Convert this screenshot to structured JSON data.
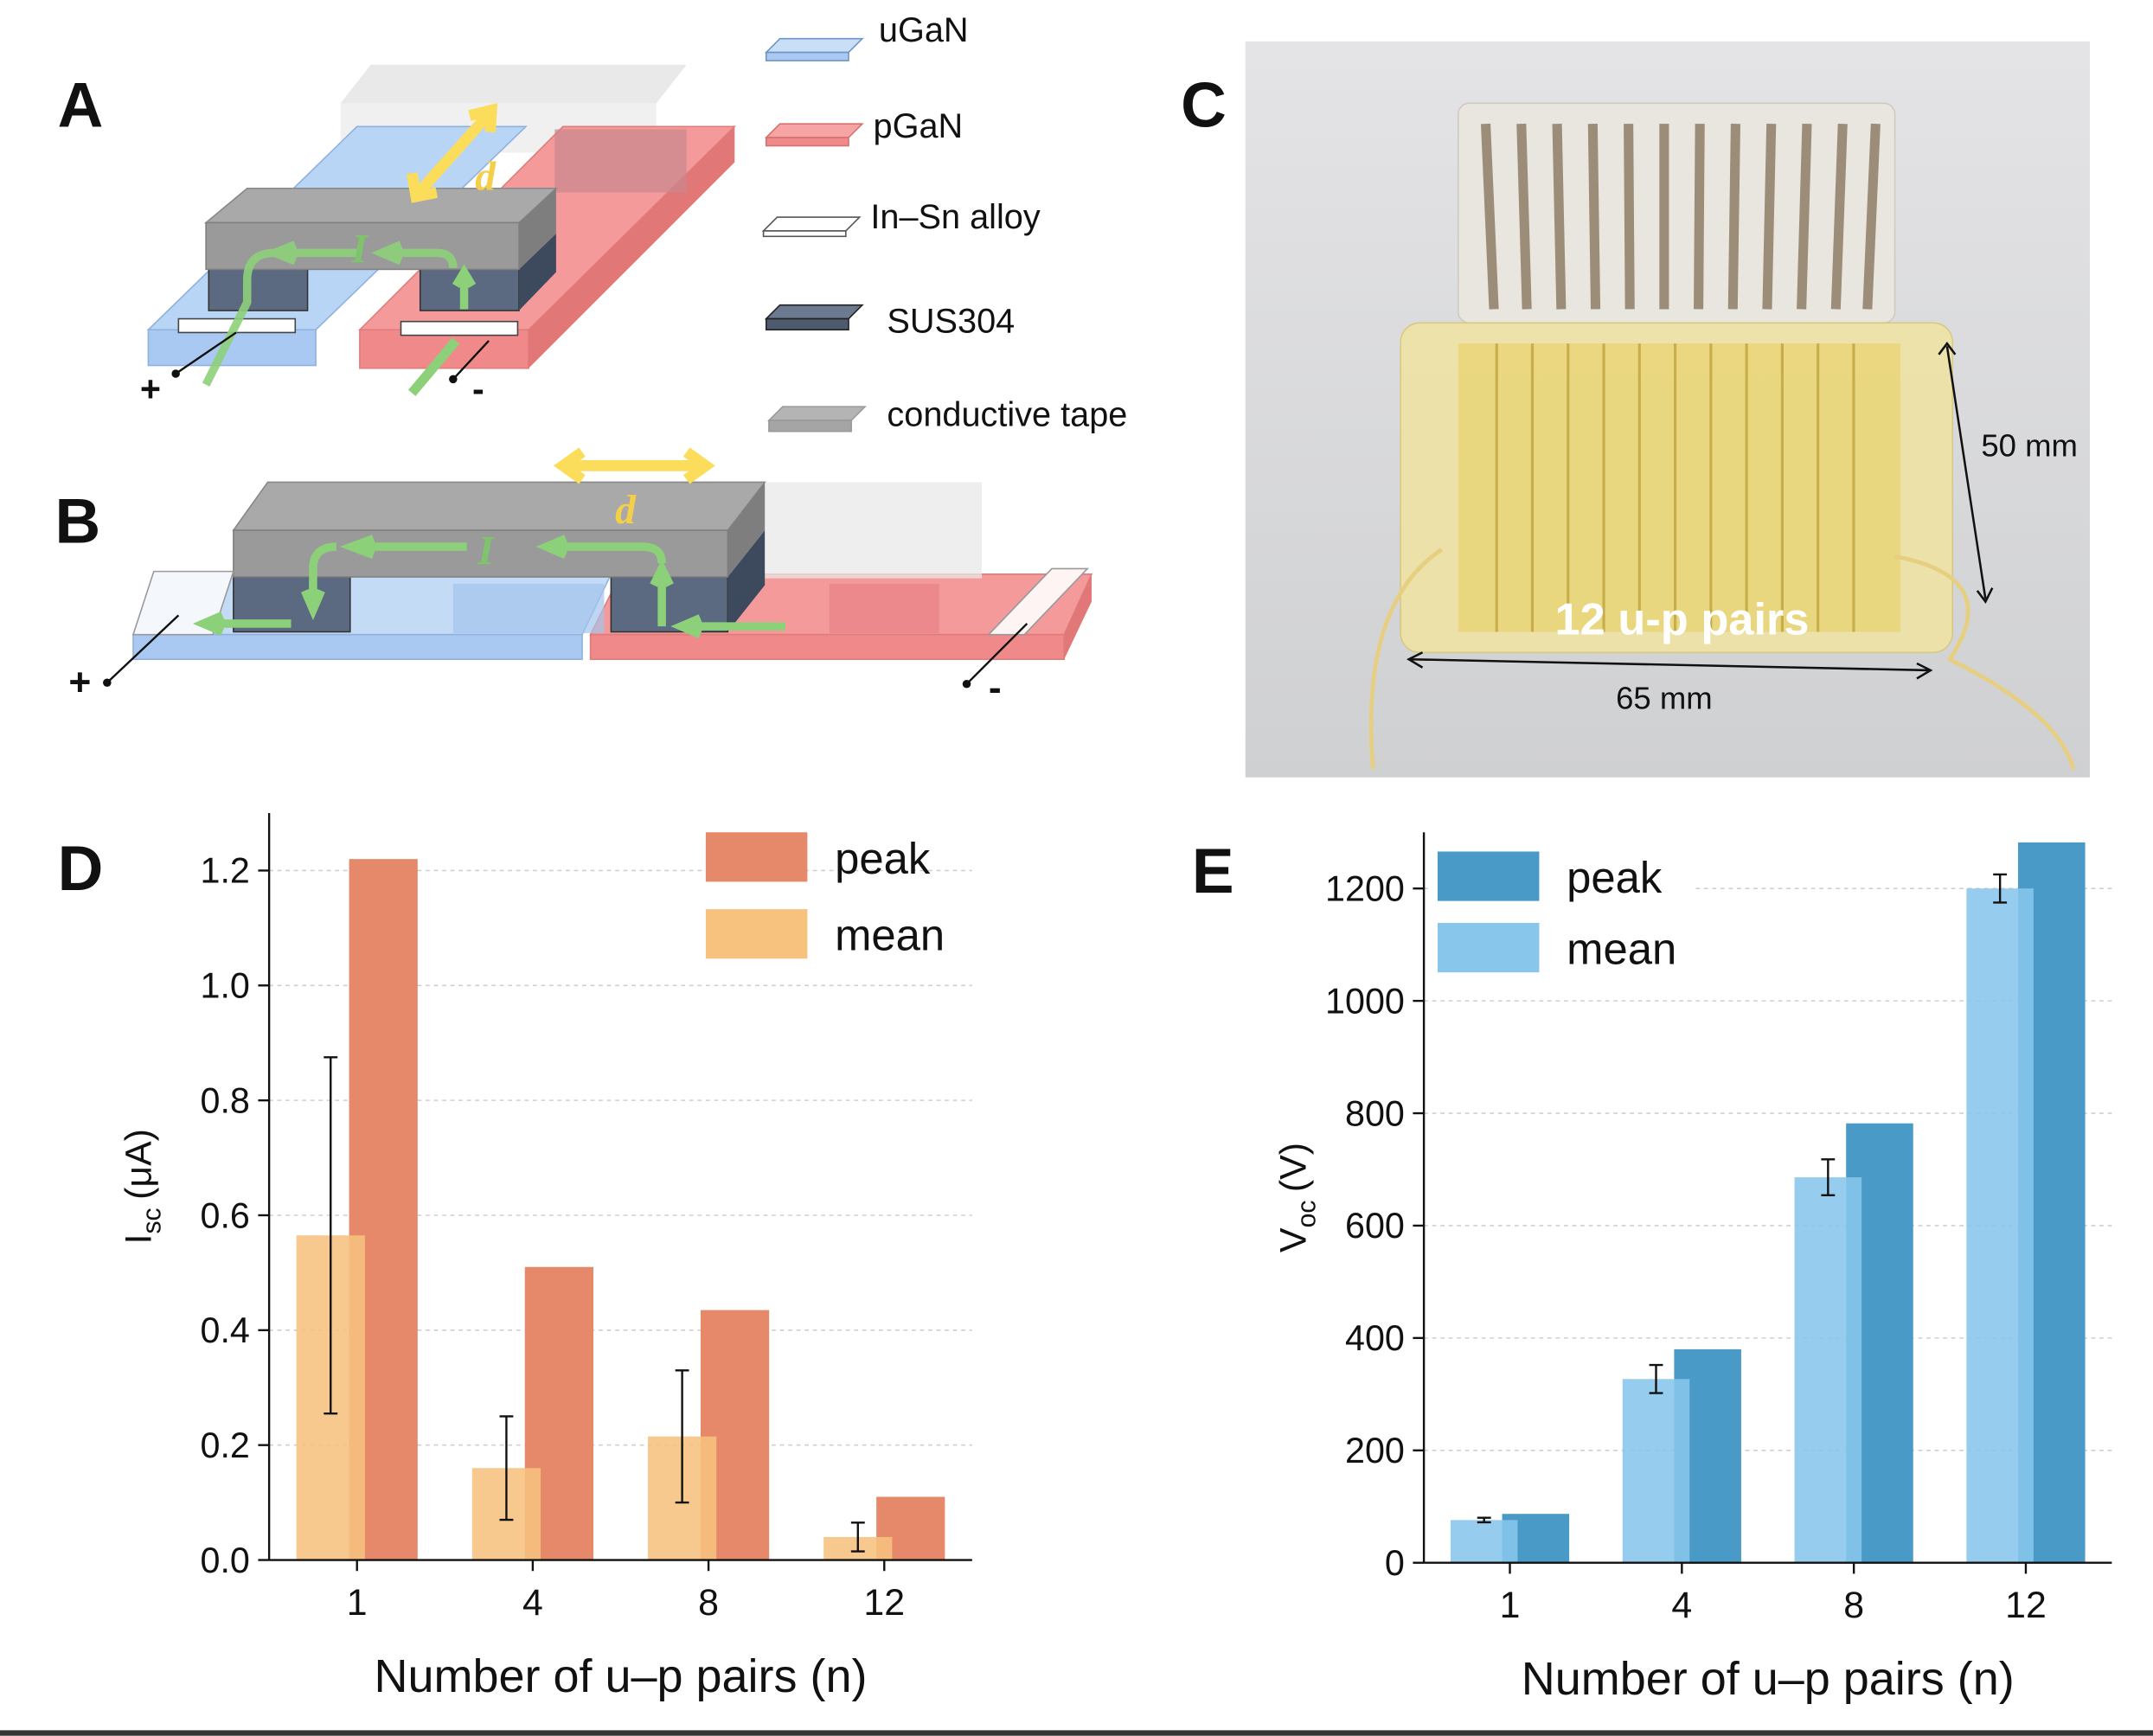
{
  "panels": {
    "a": "A",
    "b": "B",
    "c": "C",
    "d": "D",
    "e": "E"
  },
  "legend": [
    "uGaN",
    "pGaN",
    "In–Sn alloy",
    "SUS304",
    "conductive tape"
  ],
  "diagram_a": {
    "distance": "d",
    "current": "I",
    "positive": "+",
    "negative": "-"
  },
  "diagram_b": {
    "distance": "d",
    "current": "I",
    "positive": "+",
    "negative": "-"
  },
  "photo": {
    "height": "50 mm",
    "width": "65 mm",
    "caption": "12 u-p pairs"
  },
  "chart_data": [
    {
      "type": "bar",
      "ylabel_parts": [
        "I",
        "sc",
        "(μA)"
      ],
      "xlabel": "Number of u–p pairs (n)",
      "categories": [
        "1",
        "4",
        "8",
        "12"
      ],
      "series": [
        {
          "name": "peak",
          "color": "#e5896a",
          "values": [
            1.22,
            0.51,
            0.435,
            0.11
          ]
        },
        {
          "name": "mean",
          "color": "#f6c27e",
          "values": [
            0.565,
            0.16,
            0.215,
            0.04
          ],
          "errors": [
            0.31,
            0.09,
            0.115,
            0.025
          ]
        }
      ],
      "ylim": [
        0,
        1.3
      ],
      "yticks": [
        {
          "value": 0,
          "label": "0.0"
        },
        0.2,
        0.4,
        0.6,
        0.8,
        {
          "value": 1,
          "label": "1.0"
        },
        1.2
      ],
      "grid": true,
      "legend": "upper right"
    },
    {
      "type": "bar",
      "ylabel_parts": [
        "V",
        "oc",
        "(V)"
      ],
      "xlabel": "Number of u–p pairs (n)",
      "categories": [
        "1",
        "4",
        "8",
        "12"
      ],
      "series": [
        {
          "name": "peak",
          "color": "#4a9ac8",
          "values": [
            87,
            380,
            782,
            1282
          ]
        },
        {
          "name": "mean",
          "color": "#88c6ec",
          "values": [
            76,
            327,
            686,
            1200
          ],
          "errors": [
            4,
            25,
            32,
            25
          ]
        }
      ],
      "ylim": [
        0,
        1300
      ],
      "yticks": [
        0,
        200,
        400,
        600,
        800,
        1000,
        1200
      ],
      "grid": true,
      "legend": "upper left"
    }
  ]
}
